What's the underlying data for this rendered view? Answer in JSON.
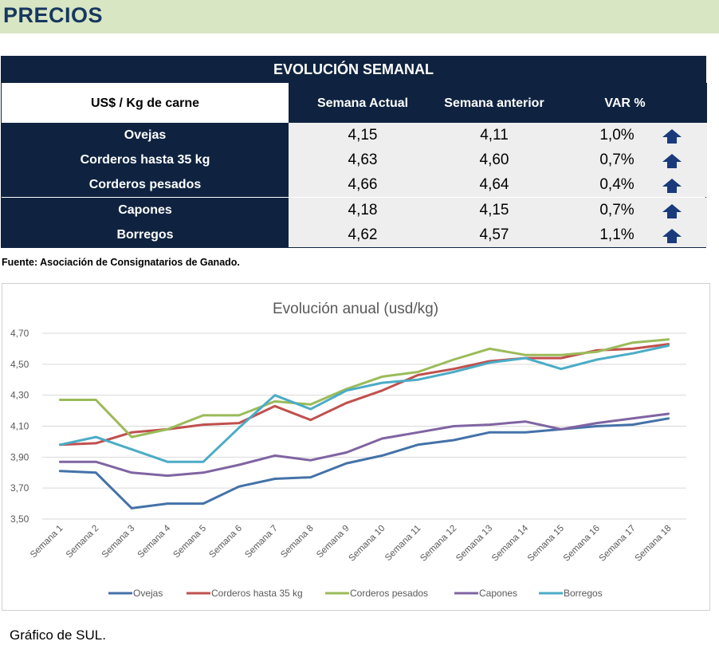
{
  "header": {
    "title": "PRECIOS"
  },
  "table": {
    "title": "EVOLUCIÓN SEMANAL",
    "unit_label": "US$ / Kg de carne",
    "columns": [
      "Semana Actual",
      "Semana anterior",
      "VAR %"
    ],
    "rows": [
      {
        "label": "Ovejas",
        "actual": "4,15",
        "anterior": "4,11",
        "var": "1,0%",
        "trend": "up-arrow-icon"
      },
      {
        "label": "Corderos hasta 35 kg",
        "actual": "4,63",
        "anterior": "4,60",
        "var": "0,7%",
        "trend": "up-arrow-icon"
      },
      {
        "label": "Corderos pesados",
        "actual": "4,66",
        "anterior": "4,64",
        "var": "0,4%",
        "trend": "up-arrow-icon"
      },
      {
        "label": "Capones",
        "actual": "4,18",
        "anterior": "4,15",
        "var": "0,7%",
        "trend": "up-arrow-icon"
      },
      {
        "label": "Borregos",
        "actual": "4,62",
        "anterior": "4,57",
        "var": "1,1%",
        "trend": "up-arrow-icon"
      }
    ],
    "colors": {
      "dark": "#0f2340",
      "arrow": "#1a3a7c"
    }
  },
  "source": "Fuente: Asociación de Consignatarios de Ganado.",
  "chart_data": {
    "type": "line",
    "title": "Evolución anual (usd/kg)",
    "categories": [
      "Semana 1",
      "Semana 2",
      "Semana 3",
      "Semana 4",
      "Semana 5",
      "Semana 6",
      "Semana 7",
      "Semana 8",
      "Semana 9",
      "Semana 10",
      "Semana 11",
      "Semana 12",
      "Semana 13",
      "Semana 14",
      "Semana 15",
      "Semana 16",
      "Semana 17",
      "Semana 18"
    ],
    "ylim": [
      3.5,
      4.7
    ],
    "yticks": [
      3.5,
      3.7,
      3.9,
      4.1,
      4.3,
      4.5,
      4.7
    ],
    "ytick_labels": [
      "3,50",
      "3,70",
      "3,90",
      "4,10",
      "4,30",
      "4,50",
      "4,70"
    ],
    "grid": true,
    "legend": "bottom",
    "series": [
      {
        "name": "Ovejas",
        "color": "#4472a8",
        "values": [
          3.81,
          3.8,
          3.57,
          3.6,
          3.6,
          3.71,
          3.76,
          3.77,
          3.86,
          3.91,
          3.98,
          4.01,
          4.06,
          4.06,
          4.08,
          4.1,
          4.11,
          4.15
        ]
      },
      {
        "name": "Corderos hasta 35 kg",
        "color": "#c0504d",
        "values": [
          3.98,
          3.99,
          4.06,
          4.08,
          4.11,
          4.12,
          4.23,
          4.14,
          4.25,
          4.33,
          4.43,
          4.47,
          4.52,
          4.54,
          4.54,
          4.59,
          4.6,
          4.63
        ]
      },
      {
        "name": "Corderos pesados",
        "color": "#9bbb59",
        "values": [
          4.27,
          4.27,
          4.03,
          4.08,
          4.17,
          4.17,
          4.26,
          4.24,
          4.34,
          4.42,
          4.45,
          4.53,
          4.6,
          4.56,
          4.56,
          4.58,
          4.64,
          4.66
        ]
      },
      {
        "name": "Capones",
        "color": "#8064a2",
        "values": [
          3.87,
          3.87,
          3.8,
          3.78,
          3.8,
          3.85,
          3.91,
          3.88,
          3.93,
          4.02,
          4.06,
          4.1,
          4.11,
          4.13,
          4.08,
          4.12,
          4.15,
          4.18
        ]
      },
      {
        "name": "Borregos",
        "color": "#4bacc6",
        "values": [
          3.98,
          4.03,
          3.95,
          3.87,
          3.87,
          4.09,
          4.3,
          4.21,
          4.33,
          4.38,
          4.4,
          4.45,
          4.51,
          4.54,
          4.47,
          4.53,
          4.57,
          4.62
        ]
      }
    ]
  },
  "caption": "Gráfico de SUL."
}
